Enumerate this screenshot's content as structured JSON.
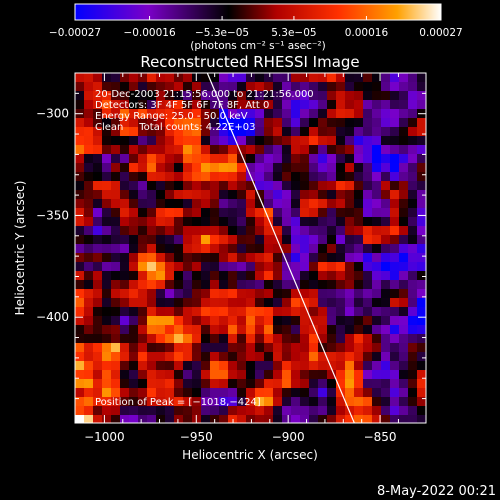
{
  "chart_data": {
    "type": "heatmap",
    "title": "Reconstructed RHESSI Image",
    "xlabel": "Heliocentric X (arcsec)",
    "ylabel": "Heliocentric Y (arcsec)",
    "xlim": [
      -1016,
      -825
    ],
    "ylim": [
      -452,
      -280
    ],
    "x_ticks": [
      {
        "value": -1000,
        "label": "−1000"
      },
      {
        "value": -950,
        "label": "−950"
      },
      {
        "value": -900,
        "label": "−900"
      },
      {
        "value": -850,
        "label": "−850"
      }
    ],
    "y_ticks": [
      {
        "value": -300,
        "label": "−300"
      },
      {
        "value": -350,
        "label": "−350"
      },
      {
        "value": -400,
        "label": "−400"
      }
    ],
    "colorbar": {
      "range": [
        -0.00027,
        0.00027
      ],
      "tick_values": [
        -0.00027,
        -0.00016,
        -5.3e-05,
        5.3e-05,
        0.00016,
        0.00027
      ],
      "tick_labels": [
        "−0.00027",
        "−0.00016",
        "−5.3e−05",
        "5.3e−05",
        "0.00016",
        "0.00027"
      ],
      "unit_label": "(photons cm⁻² s⁻¹ asec⁻²)",
      "colors": [
        "#0000ff",
        "#7a00c8",
        "#000000",
        "#b00000",
        "#ff3000",
        "#ffa000",
        "#ffffff"
      ]
    },
    "annotations": [
      "20-Dec-2003 21:15:56.000 to 21:21:56.000",
      "Detectors: 3F 4F 5F 6F 7F 8F, Att 0",
      "Energy Range: 25.0 - 50.0 keV",
      "Clean     Total counts: 4.22E+03"
    ],
    "peak_label": "Position of Peak = [−1018,−424]",
    "limb_line": {
      "points": [
        [
          -944,
          -280
        ],
        [
          -864,
          -452
        ]
      ],
      "color": "#ffffff"
    },
    "peak": [
      -1018,
      -424
    ]
  },
  "footer": {
    "timestamp": "8-May-2022 00:21"
  }
}
